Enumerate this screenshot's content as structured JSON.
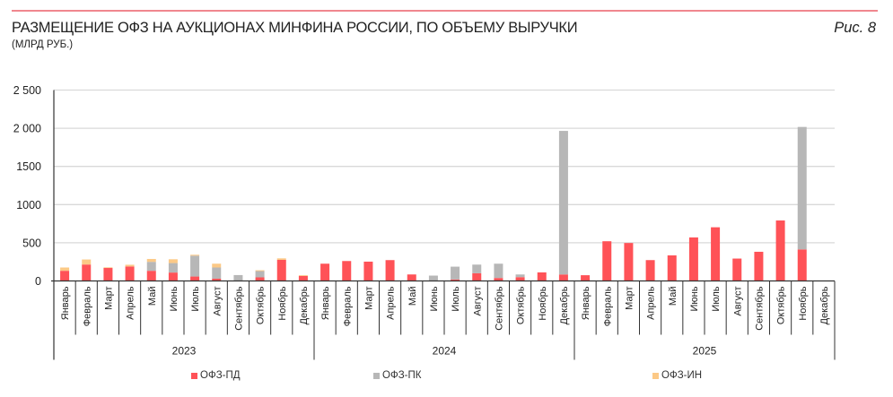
{
  "header": {
    "title": "РАЗМЕЩЕНИЕ ОФЗ НА АУКЦИОНАХ МИНФИНА РОССИИ, ПО ОБЪЕМУ ВЫРУЧКИ",
    "subtitle": "(МЛРД РУБ.)",
    "figure_label": "Рис. 8"
  },
  "colors": {
    "rule": "#f0878f",
    "pd": "#ff5257",
    "pk": "#b7b7b7",
    "in": "#fcc986",
    "grid": "#d9d9d9",
    "axis": "#333333"
  },
  "legend": [
    {
      "key": "pd",
      "label": "ОФЗ-ПД",
      "color": "#ff5257"
    },
    {
      "key": "pk",
      "label": "ОФЗ-ПК",
      "color": "#b7b7b7"
    },
    {
      "key": "in",
      "label": "ОФЗ-ИН",
      "color": "#fcc986"
    }
  ],
  "chart_data": {
    "type": "bar",
    "stacked": true,
    "title": "РАЗМЕЩЕНИЕ ОФЗ НА АУКЦИОНАХ МИНФИНА РОССИИ, ПО ОБЪЕМУ ВЫРУЧКИ",
    "subtitle": "(МЛРД РУБ.)",
    "xlabel": "",
    "ylabel": "млрд руб.",
    "ylim": [
      0,
      2500
    ],
    "yticks": [
      0,
      500,
      1000,
      1500,
      2000,
      2500
    ],
    "ytick_labels": [
      "0",
      "500",
      "1000",
      "1500",
      "2 000",
      "2 500"
    ],
    "grid": true,
    "legend_position": "bottom",
    "groups": [
      {
        "label": "2023",
        "start": 0,
        "count": 12
      },
      {
        "label": "2024",
        "start": 12,
        "count": 12
      },
      {
        "label": "2025",
        "start": 24,
        "count": 12
      }
    ],
    "categories": [
      "Январь",
      "Февраль",
      "Март",
      "Апрель",
      "Май",
      "Июнь",
      "Июль",
      "Август",
      "Сентябрь",
      "Октябрь",
      "Ноябрь",
      "Декабрь",
      "Январь",
      "Февраль",
      "Март",
      "Апрель",
      "Май",
      "Июнь",
      "Июль",
      "Август",
      "Сентябрь",
      "Октябрь",
      "Ноябрь",
      "Декабрь",
      "Январь",
      "Февраль",
      "Март",
      "Апрель",
      "Май",
      "Июнь",
      "Июль",
      "Август",
      "Сентябрь",
      "Октябрь",
      "Ноябрь",
      "Декабрь"
    ],
    "series": [
      {
        "name": "ОФЗ-ПД",
        "key": "pd",
        "values": [
          133,
          215,
          170,
          190,
          133,
          110,
          58,
          30,
          5,
          47,
          276,
          65,
          226,
          261,
          253,
          273,
          85,
          5,
          19,
          101,
          39,
          50,
          112,
          85,
          75,
          520,
          497,
          273,
          335,
          570,
          703,
          293,
          382,
          792,
          413,
          0
        ]
      },
      {
        "name": "ОФЗ-ПК",
        "key": "pk",
        "values": [
          0,
          0,
          0,
          0,
          117,
          124,
          273,
          146,
          72,
          82,
          0,
          0,
          0,
          0,
          0,
          0,
          0,
          65,
          168,
          113,
          187,
          35,
          0,
          1880,
          0,
          0,
          0,
          0,
          0,
          0,
          0,
          0,
          0,
          0,
          1604,
          0
        ]
      },
      {
        "name": "ОФЗ-ИН",
        "key": "in",
        "values": [
          43,
          66,
          8,
          22,
          38,
          50,
          12,
          50,
          0,
          11,
          20,
          10,
          0,
          0,
          0,
          0,
          0,
          0,
          0,
          0,
          0,
          0,
          0,
          0,
          0,
          0,
          0,
          0,
          0,
          0,
          0,
          0,
          0,
          0,
          0,
          0
        ]
      }
    ]
  }
}
